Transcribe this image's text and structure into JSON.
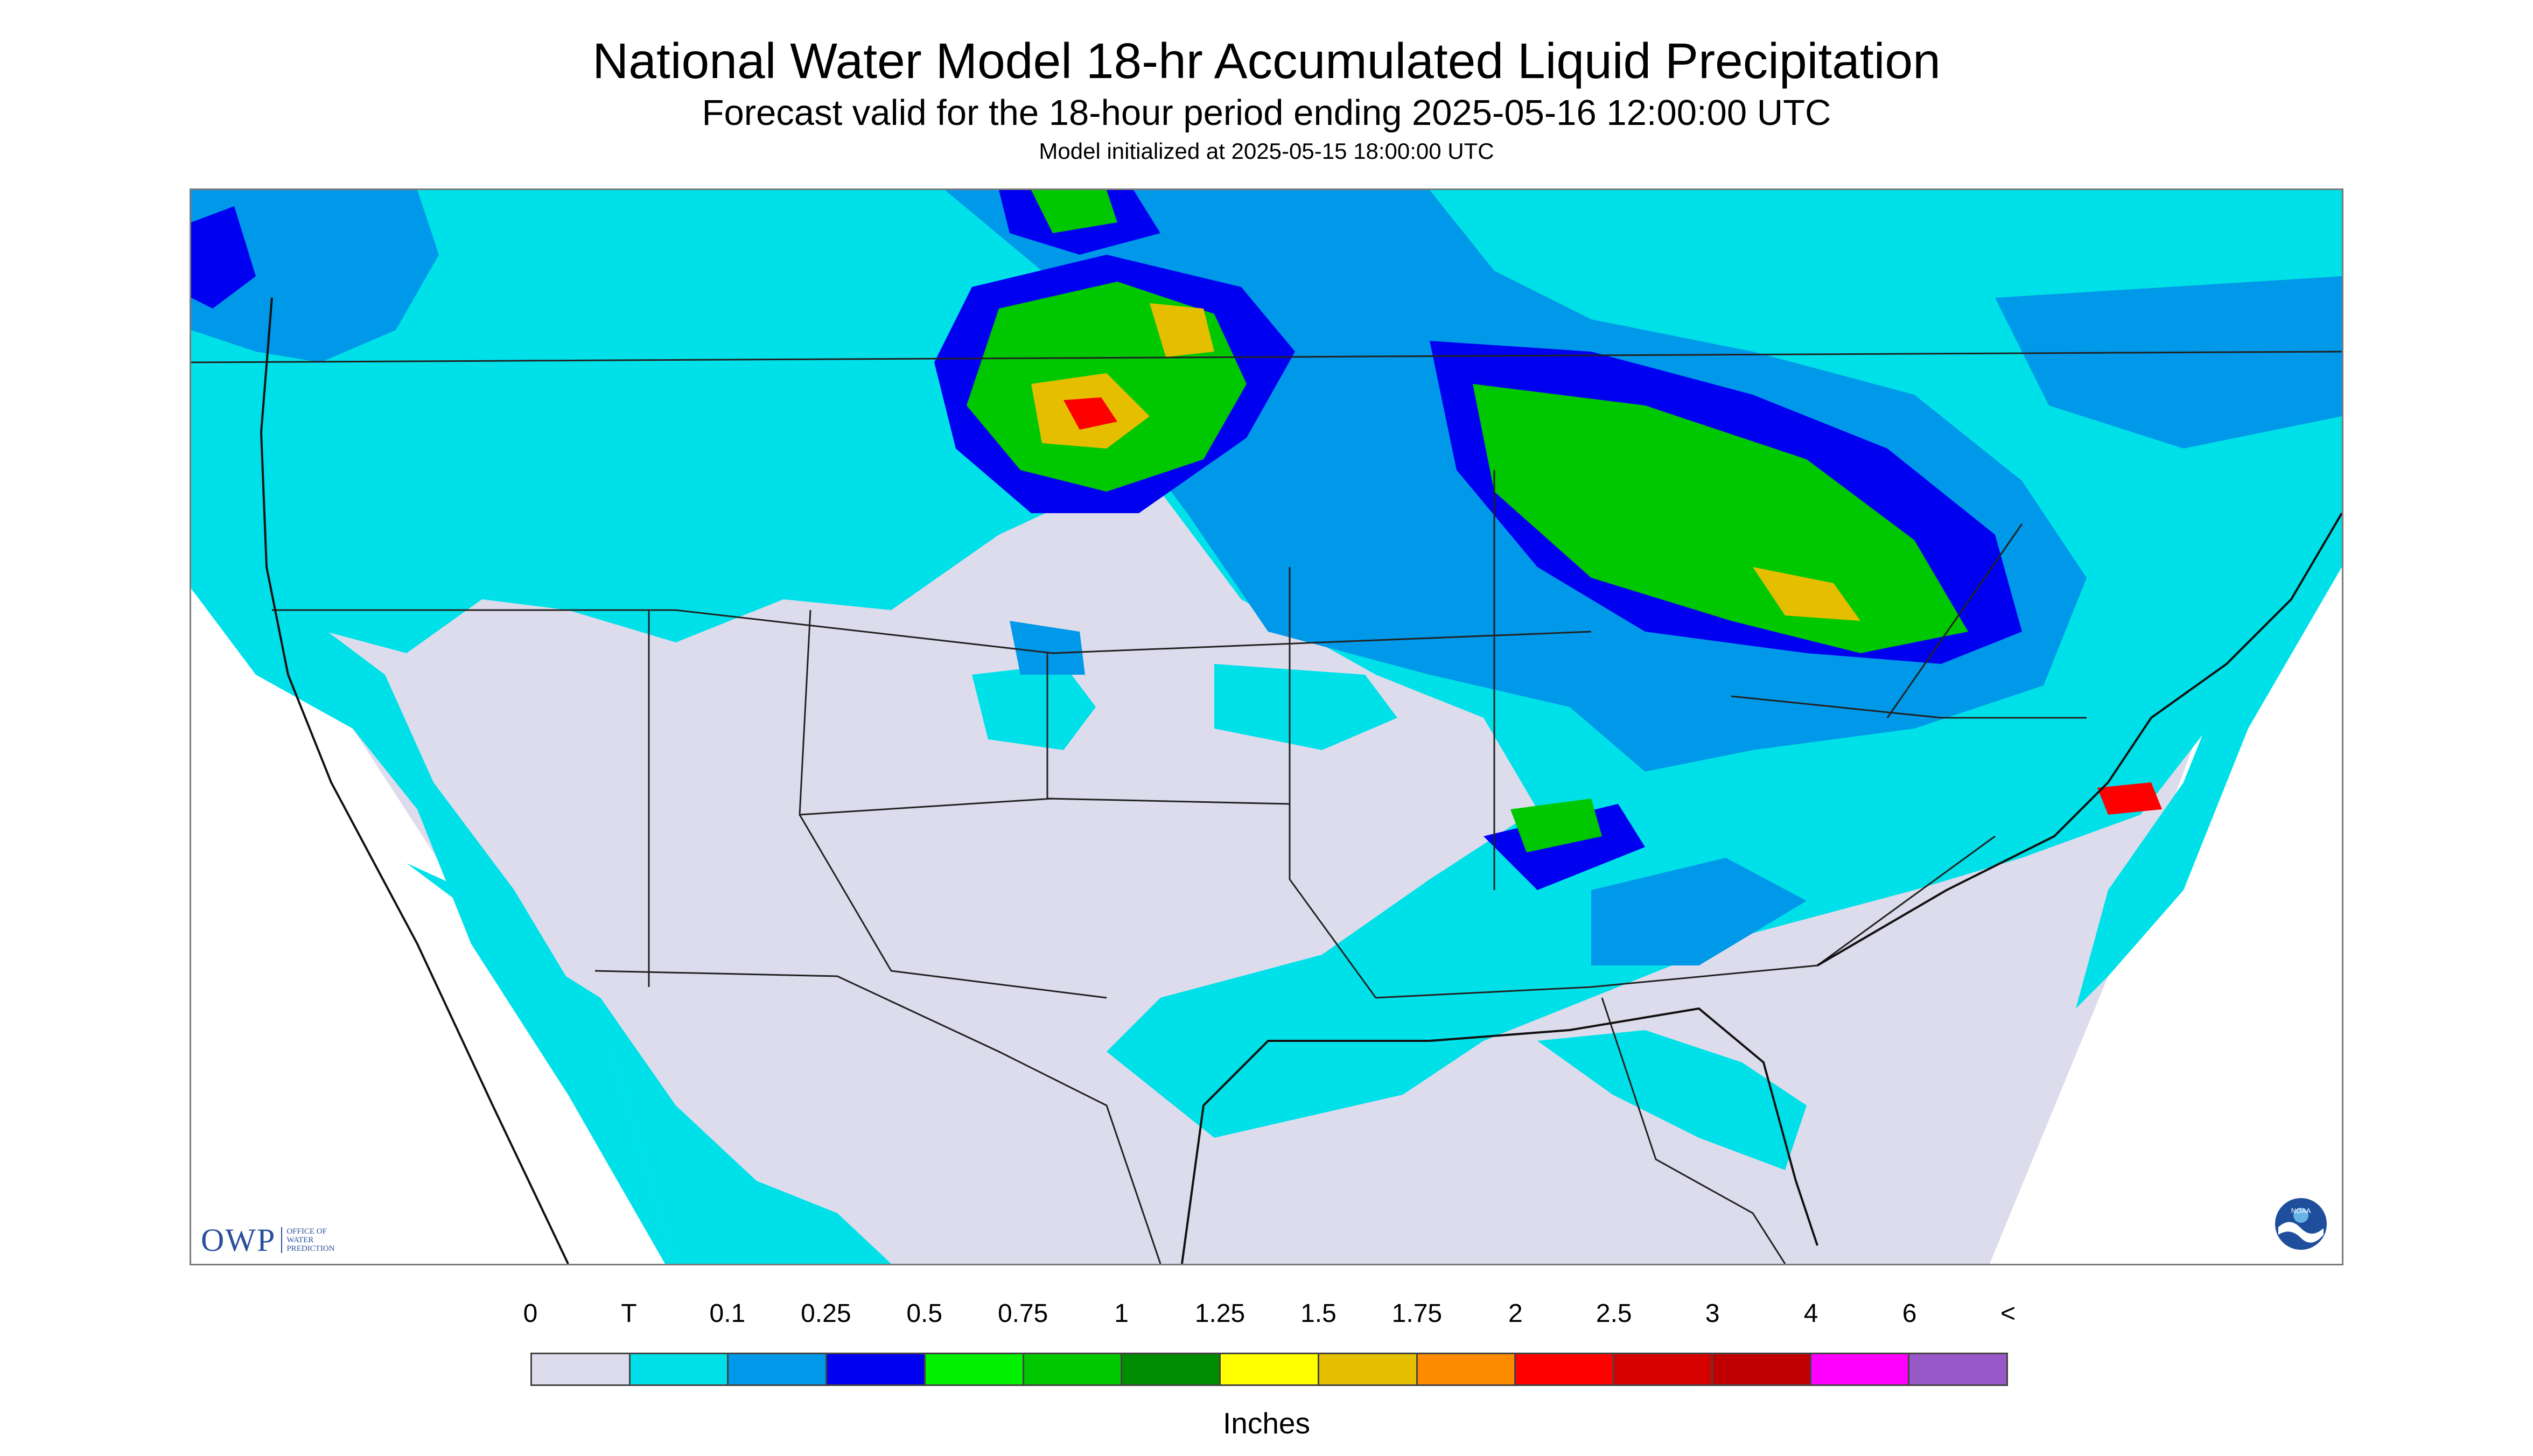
{
  "header": {
    "title": "National Water Model 18-hr Accumulated Liquid Precipitation",
    "subtitle": "Forecast valid for the 18-hour period ending 2025-05-16 12:00:00 UTC",
    "init_line": "Model initialized at 2025-05-15 18:00:00 UTC"
  },
  "logos": {
    "owp_mark": "OWP",
    "owp_text": "OFFICE OF\nWATER\nPREDICTION",
    "noaa_text": "NOAA"
  },
  "legend": {
    "tick_labels": [
      "0",
      "T",
      "0.1",
      "0.25",
      "0.5",
      "0.75",
      "1",
      "1.25",
      "1.5",
      "1.75",
      "2",
      "2.5",
      "3",
      "4",
      "6",
      "<"
    ],
    "units": "Inches",
    "colors": [
      "#dcdcec",
      "#00e0e8",
      "#0098e8",
      "#0000f0",
      "#00f000",
      "#00c800",
      "#008c00",
      "#ffff00",
      "#e6be00",
      "#ff8c00",
      "#ff0000",
      "#d60000",
      "#c00000",
      "#ff00ff",
      "#9858c8"
    ]
  },
  "map": {
    "extent_color": "#ffffff",
    "no_precip_color": "#dcdcec",
    "trace_color": "#00e0e8",
    "boundary_color": "#222222"
  }
}
